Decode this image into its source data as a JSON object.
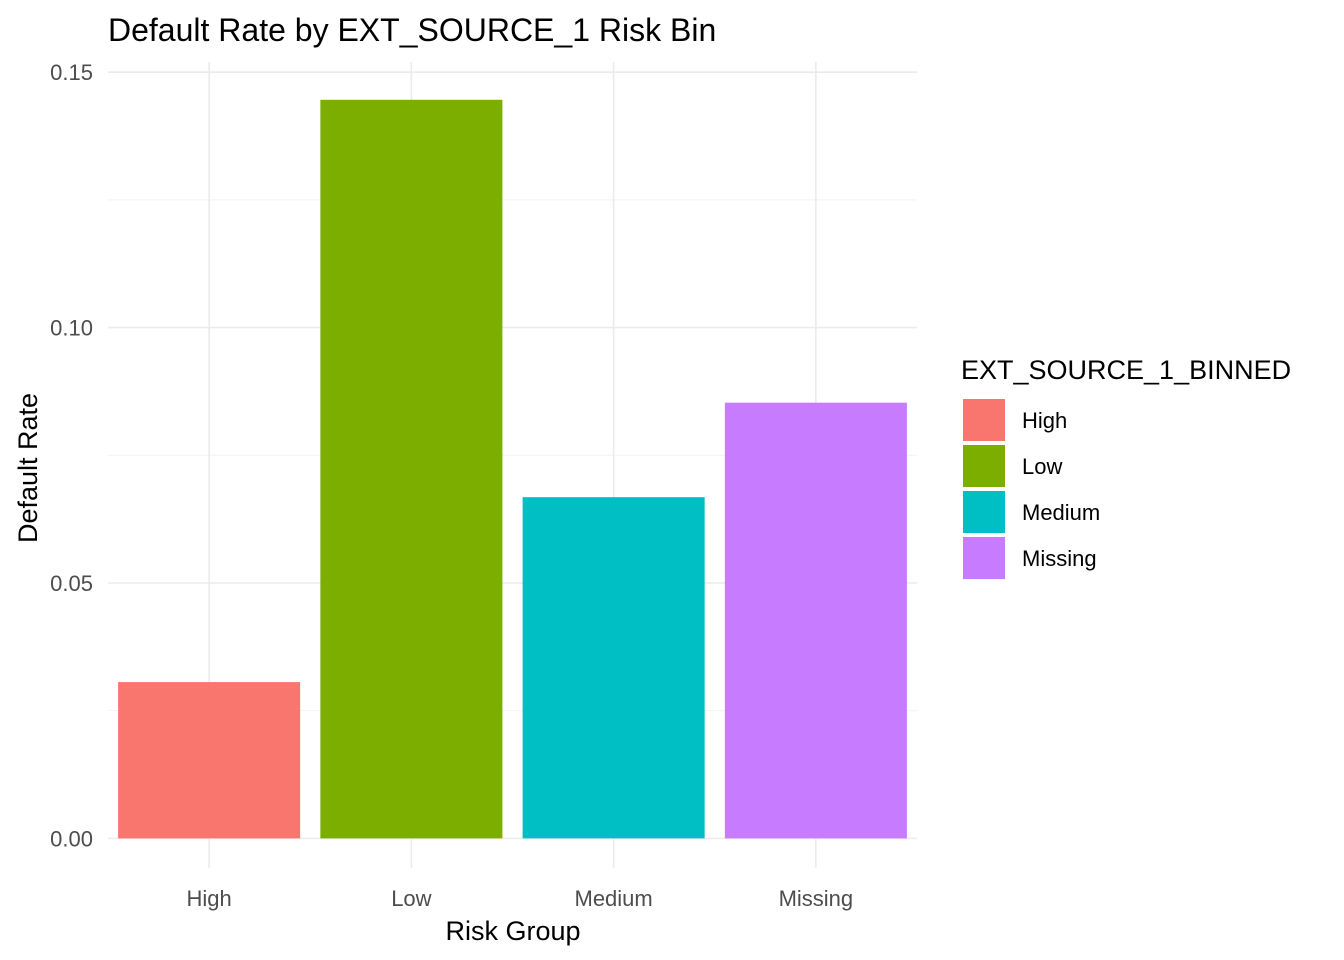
{
  "chart_data": {
    "type": "bar",
    "title": "Default Rate by EXT_SOURCE_1 Risk Bin",
    "xlabel": "Risk Group",
    "ylabel": "Default Rate",
    "categories": [
      "High",
      "Low",
      "Medium",
      "Missing"
    ],
    "values": [
      0.0306,
      0.1446,
      0.0668,
      0.0853
    ],
    "colors": [
      "#F8766D",
      "#7CAE00",
      "#00BFC4",
      "#C77CFF"
    ],
    "ylim": [
      -0.0058,
      0.152
    ],
    "yticks": [
      0.0,
      0.05,
      0.1,
      0.15
    ],
    "ytick_labels": [
      "0.00",
      "0.05",
      "0.10",
      "0.15"
    ],
    "grid": true,
    "legend": {
      "title": "EXT_SOURCE_1_BINNED",
      "position": "right",
      "entries": [
        "High",
        "Low",
        "Medium",
        "Missing"
      ]
    }
  }
}
